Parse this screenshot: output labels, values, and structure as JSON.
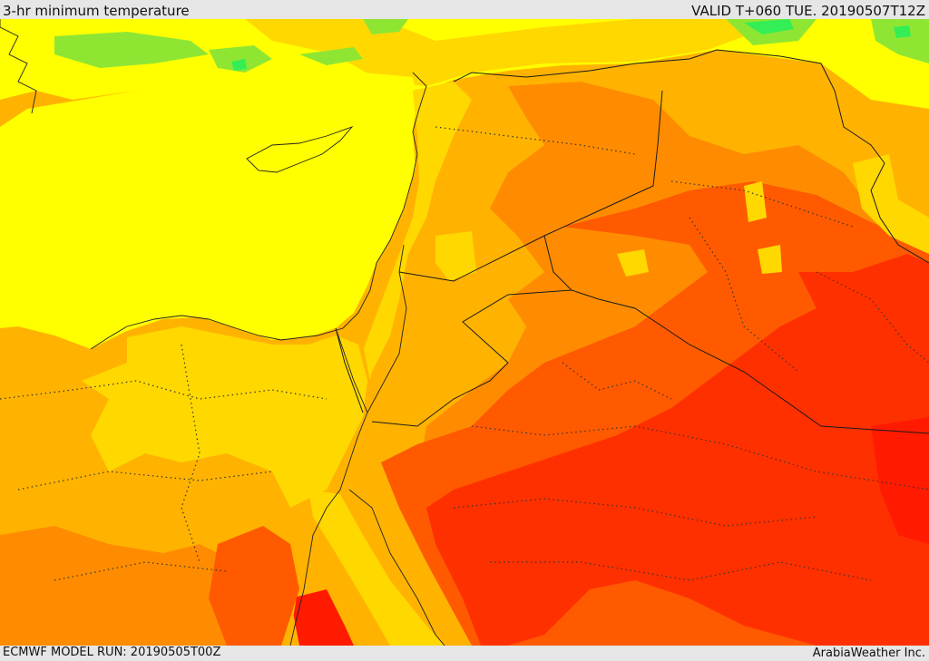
{
  "header": {
    "title": "3-hr minimum temperature",
    "valid_time": "VALID T+060 TUE. 20190507T12Z"
  },
  "footer": {
    "model_run": "ECMWF MODEL RUN: 20190505T00Z",
    "credit": "ArabiaWeather Inc."
  },
  "map": {
    "field": "3-hr minimum temperature",
    "palette": [
      "#33ee55",
      "#8ee633",
      "#c4ee22",
      "#ffff00",
      "#ffd800",
      "#ffb300",
      "#ff8c00",
      "#ff5a00",
      "#ff3000",
      "#ff1a00"
    ]
  }
}
